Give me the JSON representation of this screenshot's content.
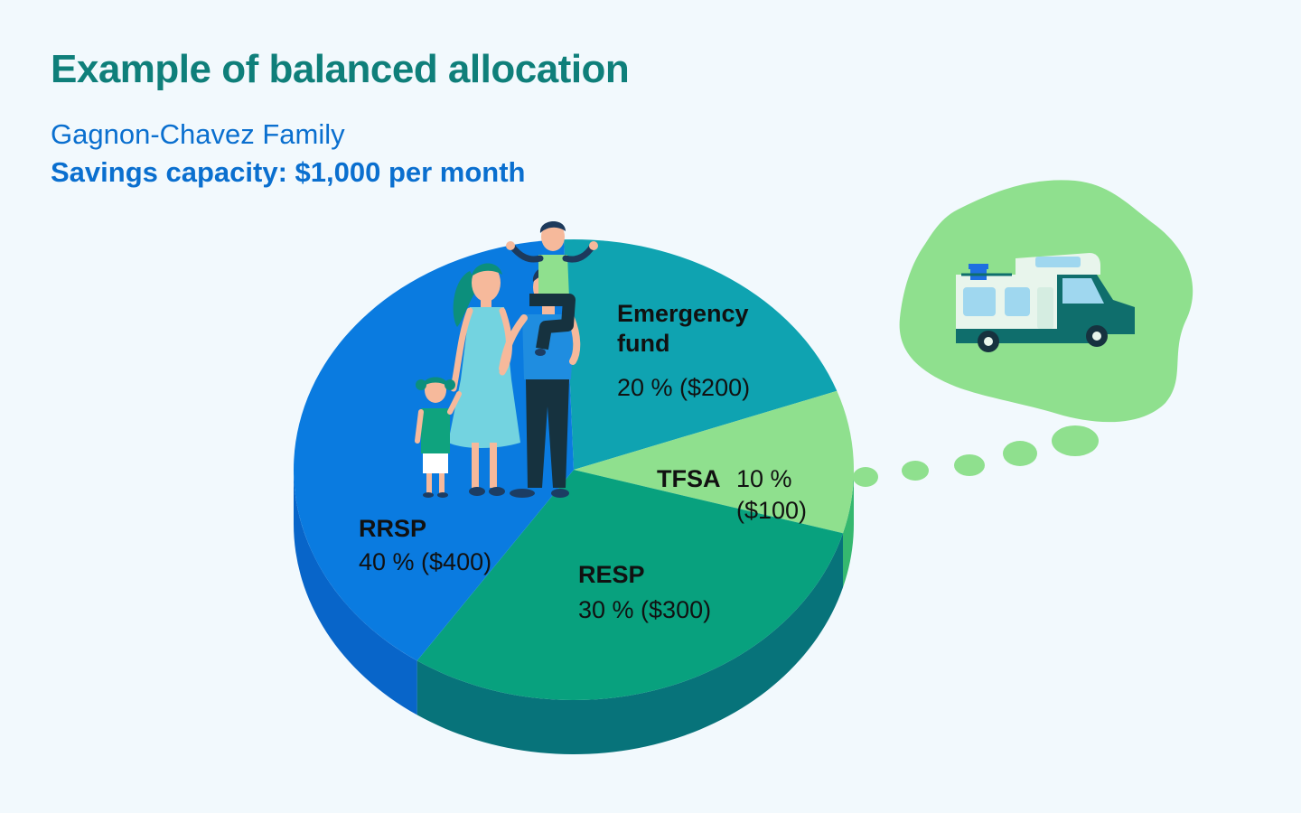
{
  "header": {
    "title": "Example of balanced allocation",
    "family": "Gagnon-Chavez Family",
    "capacity": "Savings capacity: $1,000 per month"
  },
  "chart_data": {
    "type": "pie",
    "total_per_month": 1000,
    "slices": [
      {
        "name": "Emergency fund",
        "percent": 20,
        "amount": 200,
        "value_label": "20 % ($200)",
        "color": "#0fa3b1",
        "side_color": "#0c7f8a"
      },
      {
        "name": "TFSA",
        "percent": 10,
        "amount": 100,
        "value_label": "10 %",
        "value_label2": "($100)",
        "color": "#8fe08e",
        "side_color": "#35b86f"
      },
      {
        "name": "RESP",
        "percent": 30,
        "amount": 300,
        "value_label": "30 % ($300)",
        "color": "#08a17e",
        "side_color": "#07737a"
      },
      {
        "name": "RRSP",
        "percent": 40,
        "amount": 400,
        "value_label": "40 % ($400)",
        "color": "#0a7be0",
        "side_color": "#0865c9"
      }
    ],
    "labels": {
      "emergency_line1": "Emergency",
      "emergency_line2": "fund"
    }
  },
  "illustration": {
    "family_icon": "family-icon",
    "camper_icon": "camper-van-icon",
    "cloud_color": "#8fe08e"
  }
}
